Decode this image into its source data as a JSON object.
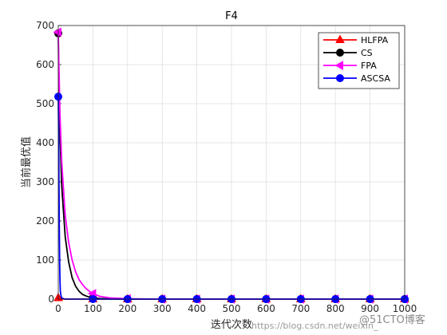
{
  "chart_data": {
    "type": "line",
    "title": "F4",
    "xlabel": "迭代次数",
    "ylabel": "当前最优值",
    "xlim": [
      0,
      1000
    ],
    "ylim": [
      0,
      700
    ],
    "xticks": [
      "0",
      "100",
      "200",
      "300",
      "400",
      "500",
      "600",
      "700",
      "800",
      "900",
      "1000"
    ],
    "yticks": [
      "0",
      "100",
      "200",
      "300",
      "400",
      "500",
      "600",
      "700"
    ],
    "grid": true,
    "legend_position": "top-right",
    "series": [
      {
        "name": "HLFPA",
        "color": "#ff0000",
        "marker": "triangle-up",
        "x": [
          0,
          1,
          2,
          3,
          5,
          10,
          100,
          200,
          300,
          400,
          500,
          600,
          700,
          800,
          900,
          1000
        ],
        "y": [
          3,
          2,
          1,
          0.5,
          0.2,
          0,
          0,
          0,
          0,
          0,
          0,
          0,
          0,
          0,
          0,
          0
        ],
        "marker_x": [
          0,
          100,
          200,
          300,
          400,
          500,
          600,
          700,
          800,
          900,
          1000
        ]
      },
      {
        "name": "CS",
        "color": "#000000",
        "marker": "circle",
        "x": [
          0,
          2,
          5,
          10,
          20,
          30,
          40,
          50,
          60,
          70,
          80,
          90,
          100,
          120,
          150,
          200,
          300,
          400,
          500,
          600,
          700,
          800,
          900,
          1000
        ],
        "y": [
          680,
          530,
          420,
          290,
          160,
          95,
          55,
          33,
          20,
          12,
          8,
          5,
          3,
          1.5,
          0.5,
          0,
          0,
          0,
          0,
          0,
          0,
          0,
          0,
          0
        ],
        "marker_x": [
          0,
          100,
          200,
          300,
          400,
          500,
          600,
          700,
          800,
          900,
          1000
        ]
      },
      {
        "name": "FPA",
        "color": "#ff00ff",
        "marker": "triangle-left",
        "x": [
          0,
          2,
          5,
          10,
          20,
          30,
          40,
          50,
          60,
          70,
          80,
          90,
          100,
          120,
          150,
          200,
          300,
          400,
          500,
          600,
          700,
          800,
          900,
          1000
        ],
        "y": [
          683,
          590,
          470,
          350,
          215,
          145,
          100,
          70,
          50,
          37,
          27,
          20,
          14,
          7,
          3,
          1,
          0,
          0,
          0,
          0,
          0,
          0,
          0,
          0
        ],
        "marker_x": [
          0,
          100,
          200,
          300,
          400,
          500,
          600,
          700,
          800,
          900,
          1000
        ]
      },
      {
        "name": "ASCSA",
        "color": "#0000ff",
        "marker": "circle",
        "x": [
          0,
          1,
          2,
          3,
          4,
          5,
          6,
          8,
          10,
          15,
          20,
          100,
          200,
          300,
          400,
          500,
          600,
          700,
          800,
          900,
          1000
        ],
        "y": [
          518,
          430,
          300,
          180,
          95,
          45,
          20,
          8,
          3,
          1,
          0,
          0,
          0,
          0,
          0,
          0,
          0,
          0,
          0,
          0,
          0
        ],
        "marker_x": [
          0,
          100,
          200,
          300,
          400,
          500,
          600,
          700,
          800,
          900,
          1000
        ]
      }
    ]
  },
  "watermark": {
    "text": "https://blog.csdn.net/weixin_",
    "brand": "@51CTO博客"
  }
}
